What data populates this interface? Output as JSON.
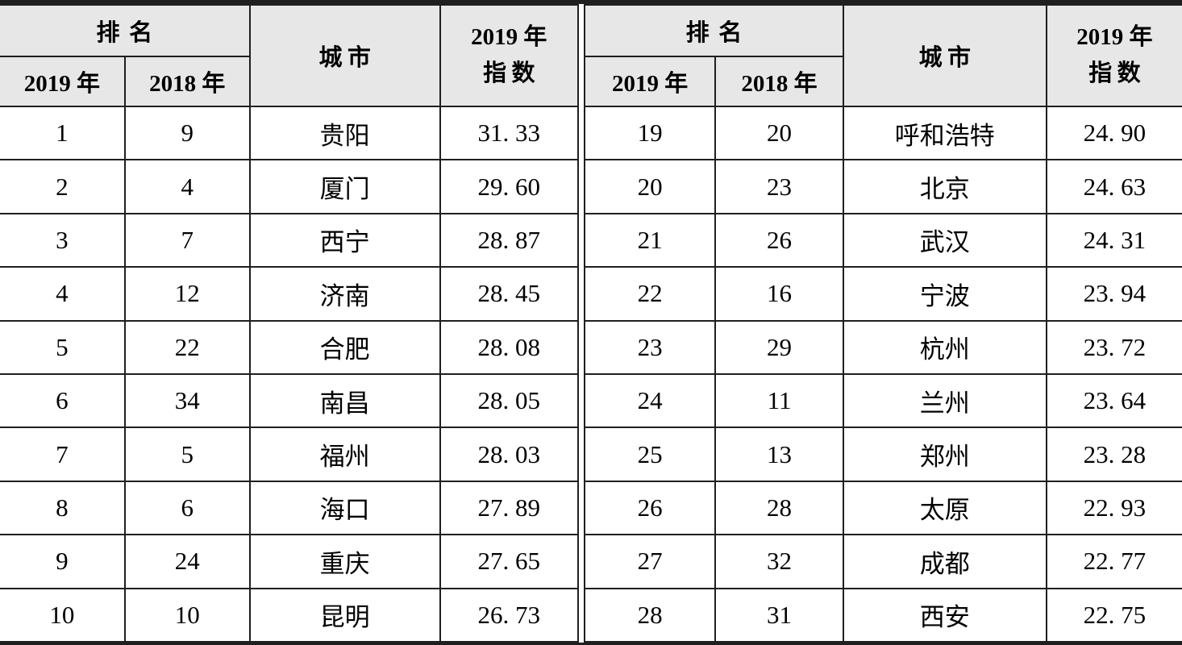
{
  "colors": {
    "border": "#1f1f1f",
    "header_bg": "#e7e7e7",
    "text": "#000000",
    "page_bg": "#ffffff"
  },
  "header": {
    "rank_group": "排名",
    "col_2019": "2019 年",
    "col_2018": "2018 年",
    "city": "城市",
    "index_line1": "2019 年",
    "index_line2": "指数"
  },
  "left_rows": [
    {
      "rank_2019": "1",
      "rank_2018": "9",
      "city": "贵阳",
      "index_2019": "31. 33"
    },
    {
      "rank_2019": "2",
      "rank_2018": "4",
      "city": "厦门",
      "index_2019": "29. 60"
    },
    {
      "rank_2019": "3",
      "rank_2018": "7",
      "city": "西宁",
      "index_2019": "28. 87"
    },
    {
      "rank_2019": "4",
      "rank_2018": "12",
      "city": "济南",
      "index_2019": "28. 45"
    },
    {
      "rank_2019": "5",
      "rank_2018": "22",
      "city": "合肥",
      "index_2019": "28. 08"
    },
    {
      "rank_2019": "6",
      "rank_2018": "34",
      "city": "南昌",
      "index_2019": "28. 05"
    },
    {
      "rank_2019": "7",
      "rank_2018": "5",
      "city": "福州",
      "index_2019": "28. 03"
    },
    {
      "rank_2019": "8",
      "rank_2018": "6",
      "city": "海口",
      "index_2019": "27. 89"
    },
    {
      "rank_2019": "9",
      "rank_2018": "24",
      "city": "重庆",
      "index_2019": "27. 65"
    },
    {
      "rank_2019": "10",
      "rank_2018": "10",
      "city": "昆明",
      "index_2019": "26. 73"
    }
  ],
  "right_rows": [
    {
      "rank_2019": "19",
      "rank_2018": "20",
      "city": "呼和浩特",
      "index_2019": "24. 90"
    },
    {
      "rank_2019": "20",
      "rank_2018": "23",
      "city": "北京",
      "index_2019": "24. 63"
    },
    {
      "rank_2019": "21",
      "rank_2018": "26",
      "city": "武汉",
      "index_2019": "24. 31"
    },
    {
      "rank_2019": "22",
      "rank_2018": "16",
      "city": "宁波",
      "index_2019": "23. 94"
    },
    {
      "rank_2019": "23",
      "rank_2018": "29",
      "city": "杭州",
      "index_2019": "23. 72"
    },
    {
      "rank_2019": "24",
      "rank_2018": "11",
      "city": "兰州",
      "index_2019": "23. 64"
    },
    {
      "rank_2019": "25",
      "rank_2018": "13",
      "city": "郑州",
      "index_2019": "23. 28"
    },
    {
      "rank_2019": "26",
      "rank_2018": "28",
      "city": "太原",
      "index_2019": "22. 93"
    },
    {
      "rank_2019": "27",
      "rank_2018": "32",
      "city": "成都",
      "index_2019": "22. 77"
    },
    {
      "rank_2019": "28",
      "rank_2018": "31",
      "city": "西安",
      "index_2019": "22. 75"
    }
  ]
}
